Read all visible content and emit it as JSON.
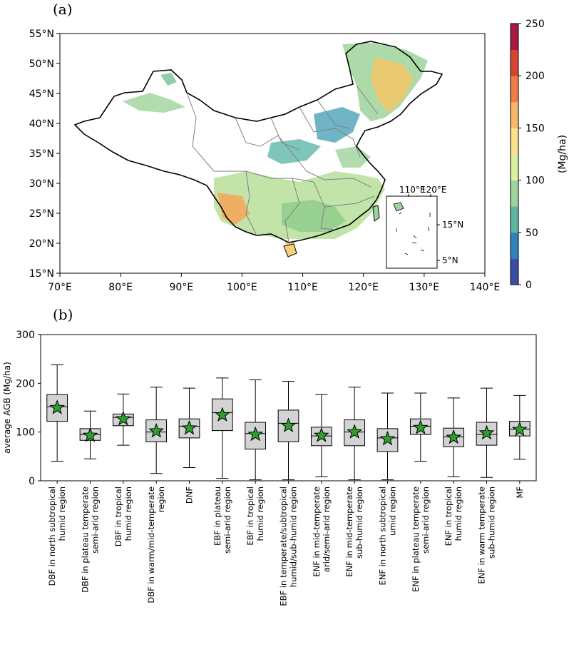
{
  "colors": {
    "colorbar": [
      "#3a4fa3",
      "#2f83ba",
      "#5fb6a7",
      "#9fd49f",
      "#dcefa0",
      "#fbe28f",
      "#f9b869",
      "#ef7d4a",
      "#d84433",
      "#a71a42"
    ],
    "box_fill": "#d3d3d3",
    "star": "#2ca02c",
    "map_line": "#000000",
    "province_line": "#808080"
  },
  "chart_data": [
    {
      "type": "map",
      "panel_label": "(a)",
      "x_ticks": [
        "70°E",
        "80°E",
        "90°E",
        "100°E",
        "110°E",
        "120°E",
        "130°E",
        "140°E"
      ],
      "y_ticks": [
        "15°N",
        "20°N",
        "25°N",
        "30°N",
        "35°N",
        "40°N",
        "45°N",
        "50°N",
        "55°N"
      ],
      "lon_range": [
        70,
        140
      ],
      "lat_range": [
        15,
        55
      ],
      "colorbar": {
        "label": "(Mg/ha)",
        "range": [
          0,
          250
        ],
        "ticks": [
          "0",
          "50",
          "100",
          "150",
          "200",
          "250"
        ]
      },
      "inset": {
        "x_ticks": [
          "110°E",
          "120°E"
        ],
        "y_ticks": [
          "15°N",
          "5°N"
        ]
      }
    },
    {
      "type": "box",
      "panel_label": "(b)",
      "ylabel": "average AGB (Mg/ha)",
      "ylim": [
        0,
        300
      ],
      "y_ticks": [
        "0",
        "100",
        "200",
        "300"
      ],
      "categories": [
        {
          "lines": [
            "DBF in north subtropical",
            "humid region"
          ],
          "whisker_low": 40,
          "q1": 122,
          "median": 152,
          "q3": 177,
          "whisker_high": 238,
          "mean": 150
        },
        {
          "lines": [
            "DBF in plateau temperate",
            "semi-arid region"
          ],
          "whisker_low": 45,
          "q1": 83,
          "median": 95,
          "q3": 107,
          "whisker_high": 143,
          "mean": 93
        },
        {
          "lines": [
            "DBF in tropical",
            "humid region"
          ],
          "whisker_low": 73,
          "q1": 113,
          "median": 130,
          "q3": 137,
          "whisker_high": 178,
          "mean": 127
        },
        {
          "lines": [
            "DBF in warm/mid-temperate",
            "region"
          ],
          "whisker_low": 15,
          "q1": 80,
          "median": 100,
          "q3": 125,
          "whisker_high": 192,
          "mean": 102
        },
        {
          "lines": [
            "DNF"
          ],
          "whisker_low": 27,
          "q1": 88,
          "median": 112,
          "q3": 127,
          "whisker_high": 190,
          "mean": 108
        },
        {
          "lines": [
            "EBF in plateau",
            "semi-arid region"
          ],
          "whisker_low": 5,
          "q1": 103,
          "median": 140,
          "q3": 168,
          "whisker_high": 211,
          "mean": 135
        },
        {
          "lines": [
            "EBF in tropical",
            "humid region"
          ],
          "whisker_low": 2,
          "q1": 65,
          "median": 97,
          "q3": 120,
          "whisker_high": 207,
          "mean": 95
        },
        {
          "lines": [
            "EBF in temperate/subtropical",
            "humid/sub-humid region"
          ],
          "whisker_low": 2,
          "q1": 80,
          "median": 118,
          "q3": 145,
          "whisker_high": 204,
          "mean": 113
        },
        {
          "lines": [
            "ENF in mid-temperate",
            "arid/semi-arid region"
          ],
          "whisker_low": 8,
          "q1": 72,
          "median": 92,
          "q3": 110,
          "whisker_high": 177,
          "mean": 93
        },
        {
          "lines": [
            "ENF in mid-temperate",
            "sub-humid region"
          ],
          "whisker_low": 2,
          "q1": 72,
          "median": 100,
          "q3": 125,
          "whisker_high": 192,
          "mean": 100
        },
        {
          "lines": [
            "ENF in north subtropical",
            "umid region"
          ],
          "whisker_low": 2,
          "q1": 60,
          "median": 88,
          "q3": 107,
          "whisker_high": 180,
          "mean": 86
        },
        {
          "lines": [
            "ENF in plateau temperate",
            "semi-arid region"
          ],
          "whisker_low": 40,
          "q1": 95,
          "median": 112,
          "q3": 127,
          "whisker_high": 180,
          "mean": 109
        },
        {
          "lines": [
            "ENF in tropical",
            "humid region"
          ],
          "whisker_low": 8,
          "q1": 70,
          "median": 90,
          "q3": 108,
          "whisker_high": 170,
          "mean": 89
        },
        {
          "lines": [
            "ENF in warm temperate",
            "sub-humid region"
          ],
          "whisker_low": 7,
          "q1": 73,
          "median": 95,
          "q3": 120,
          "whisker_high": 190,
          "mean": 98
        },
        {
          "lines": [
            "MF"
          ],
          "whisker_low": 44,
          "q1": 92,
          "median": 106,
          "q3": 122,
          "whisker_high": 175,
          "mean": 105
        }
      ]
    }
  ]
}
